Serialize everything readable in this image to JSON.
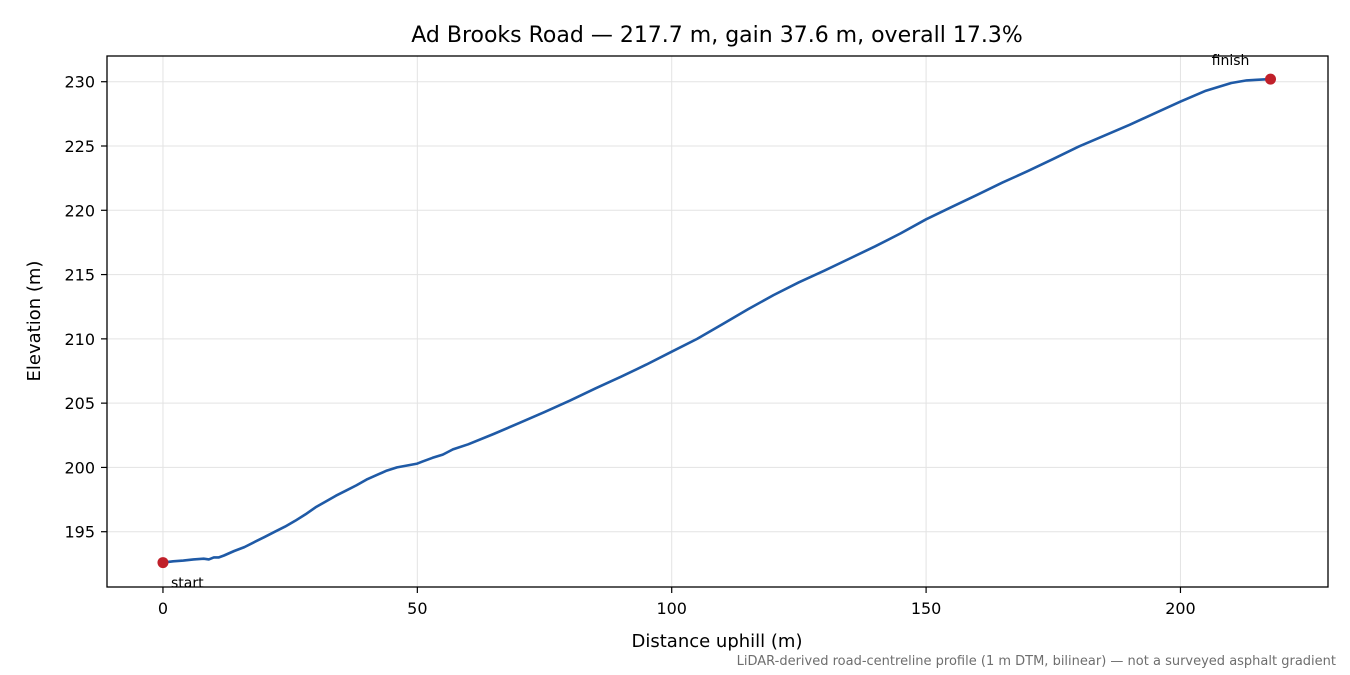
{
  "chart_data": {
    "type": "line",
    "title": "Ad Brooks Road — 217.7 m, gain 37.6 m, overall 17.3%",
    "xlabel": "Distance uphill (m)",
    "ylabel": "Elevation (m)",
    "xlim": [
      -11,
      229
    ],
    "ylim": [
      190.7,
      232.0
    ],
    "xticks": [
      0,
      50,
      100,
      150,
      200
    ],
    "yticks": [
      195,
      200,
      205,
      210,
      215,
      220,
      225,
      230
    ],
    "grid": true,
    "line_color": "#1f5aa6",
    "marker_color": "#c0202a",
    "series": [
      {
        "x": [
          0,
          2,
          4,
          6,
          8,
          9,
          10,
          11,
          12,
          14,
          16,
          18,
          20,
          22,
          24,
          26,
          28,
          30,
          32,
          34,
          36,
          38,
          40,
          42,
          44,
          46,
          48,
          50,
          51,
          52,
          53,
          55,
          57,
          60,
          65,
          70,
          75,
          80,
          85,
          90,
          95,
          100,
          105,
          110,
          115,
          120,
          125,
          130,
          135,
          140,
          145,
          150,
          155,
          160,
          165,
          170,
          175,
          180,
          185,
          190,
          195,
          200,
          205,
          210,
          213,
          215,
          217.7
        ],
        "y": [
          192.6,
          192.7,
          192.75,
          192.85,
          192.9,
          192.85,
          193.0,
          193.0,
          193.15,
          193.5,
          193.8,
          194.2,
          194.6,
          195.0,
          195.4,
          195.85,
          196.35,
          196.9,
          197.35,
          197.8,
          198.2,
          198.6,
          199.05,
          199.4,
          199.75,
          200.0,
          200.15,
          200.3,
          200.45,
          200.6,
          200.75,
          201.0,
          201.4,
          201.8,
          202.6,
          203.45,
          204.3,
          205.2,
          206.15,
          207.05,
          208.0,
          209.0,
          210.0,
          211.15,
          212.3,
          213.4,
          214.4,
          215.3,
          216.25,
          217.2,
          218.2,
          219.3,
          220.25,
          221.2,
          222.15,
          223.05,
          224.0,
          224.95,
          225.8,
          226.65,
          227.55,
          228.45,
          229.3,
          229.9,
          230.1,
          230.15,
          230.2
        ]
      }
    ],
    "annotations": [
      {
        "label": "start",
        "x": 0,
        "y": 192.6
      },
      {
        "label": "finish",
        "x": 217.7,
        "y": 230.2
      }
    ],
    "footnote": "LiDAR-derived road-centreline profile (1 m DTM, bilinear) — not a surveyed asphalt gradient"
  }
}
